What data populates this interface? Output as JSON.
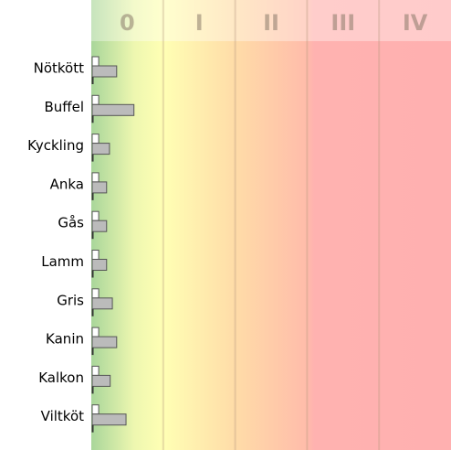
{
  "chart_data": {
    "type": "bar",
    "orientation": "horizontal",
    "categories": [
      "Nötkött",
      "Buffel",
      "Kyckling",
      "Anka",
      "Gås",
      "Lamm",
      "Gris",
      "Kanin",
      "Kalkon",
      "Viltköt"
    ],
    "series": [
      {
        "color": "#ffffff",
        "values": [
          0.09,
          0.09,
          0.09,
          0.09,
          0.09,
          0.09,
          0.09,
          0.09,
          0.09,
          0.09
        ]
      },
      {
        "color": "#bbbbbb",
        "values": [
          0.34,
          0.58,
          0.24,
          0.2,
          0.2,
          0.2,
          0.28,
          0.34,
          0.25,
          0.47
        ]
      }
    ],
    "xlim": [
      0,
      5
    ],
    "xticks": [
      {
        "value": 0.5,
        "label": "0"
      },
      {
        "value": 1.5,
        "label": "I"
      },
      {
        "value": 2.5,
        "label": "II"
      },
      {
        "value": 3.5,
        "label": "III"
      },
      {
        "value": 4.5,
        "label": "IV"
      }
    ]
  }
}
